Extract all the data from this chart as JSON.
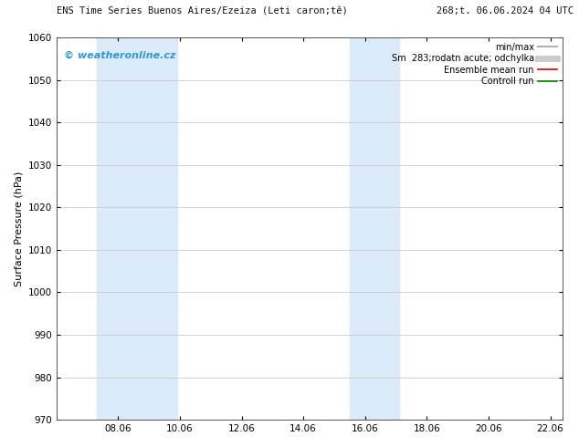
{
  "title_left": "ENS Time Series Buenos Aires/Ezeiza (Leti caron;tě)",
  "title_right": "268;t. 06.06.2024 04 UTC",
  "ylabel": "Surface Pressure (hPa)",
  "ylim": [
    970,
    1060
  ],
  "yticks": [
    970,
    980,
    990,
    1000,
    1010,
    1020,
    1030,
    1040,
    1050,
    1060
  ],
  "xtick_positions": [
    8,
    10,
    12,
    14,
    16,
    18,
    20,
    22
  ],
  "xtick_labels": [
    "08.06",
    "10.06",
    "12.06",
    "14.06",
    "16.06",
    "18.06",
    "20.06",
    "22.06"
  ],
  "xlim": [
    6.0,
    22.4
  ],
  "shaded_regions": [
    {
      "xmin": 7.3,
      "xmax": 9.9,
      "color": "#daeaf8"
    },
    {
      "xmin": 15.5,
      "xmax": 17.1,
      "color": "#daeaf8"
    }
  ],
  "watermark_text": "© weatheronline.cz",
  "watermark_color": "#3399cc",
  "legend_entries": [
    {
      "label": "min/max",
      "color": "#b0b0b0",
      "lw": 1.5
    },
    {
      "label": "Sm  283;rodatn acute; odchylka",
      "color": "#cccccc",
      "lw": 5
    },
    {
      "label": "Ensemble mean run",
      "color": "#dd0000",
      "lw": 1.2
    },
    {
      "label": "Controll run",
      "color": "#007700",
      "lw": 1.2
    }
  ],
  "bg_color": "#ffffff",
  "plot_bg_color": "#ffffff",
  "grid_color": "#cccccc",
  "border_color": "#555555",
  "font_size_title": 7.5,
  "font_size_axis": 8,
  "font_size_tick": 7.5,
  "font_size_legend": 7,
  "font_size_watermark": 8
}
